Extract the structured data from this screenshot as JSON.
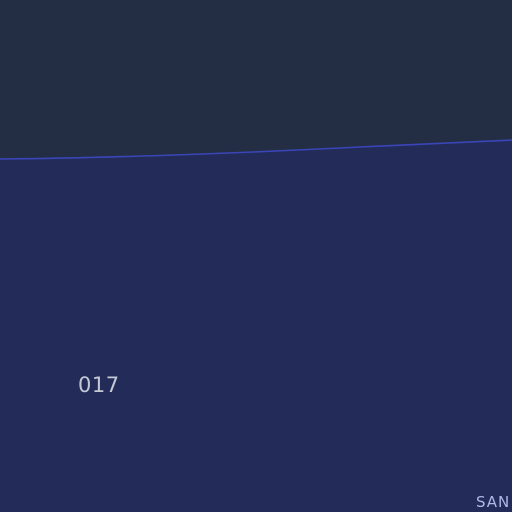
{
  "map": {
    "colors": {
      "land": "#232e44",
      "water": "#232c59",
      "shoreline": "#3a45b8"
    },
    "labels": {
      "road_number": "017",
      "place_partial": "SAN"
    }
  }
}
